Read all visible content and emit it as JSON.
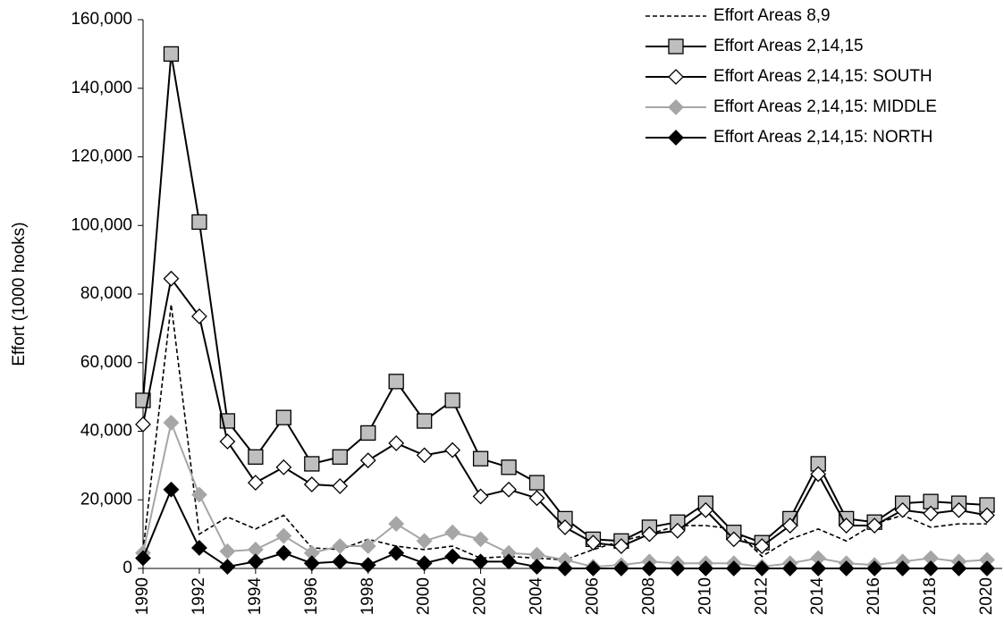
{
  "chart_data": {
    "type": "line",
    "y_label": "Effort (1000 hooks)",
    "x": [
      1990,
      1991,
      1992,
      1993,
      1994,
      1995,
      1996,
      1997,
      1998,
      1999,
      2000,
      2001,
      2002,
      2003,
      2004,
      2005,
      2006,
      2007,
      2008,
      2009,
      2010,
      2011,
      2012,
      2013,
      2014,
      2015,
      2016,
      2017,
      2018,
      2019,
      2020
    ],
    "xlim": [
      1990,
      2020.54
    ],
    "xticks": [
      1990,
      1992,
      1994,
      1996,
      1998,
      2000,
      2002,
      2004,
      2006,
      2008,
      2010,
      2012,
      2014,
      2016,
      2018,
      2020
    ],
    "ylim": [
      0,
      160000
    ],
    "yticks": [
      {
        "value": 0,
        "label": "0"
      },
      {
        "value": 20000,
        "label": "20,000"
      },
      {
        "value": 40000,
        "label": "40,000"
      },
      {
        "value": 60000,
        "label": "60,000"
      },
      {
        "value": 80000,
        "label": "80,000"
      },
      {
        "value": 100000,
        "label": "100,000"
      },
      {
        "value": 120000,
        "label": "120,000"
      },
      {
        "value": 140000,
        "label": "140,000"
      },
      {
        "value": 160000,
        "label": "160,000"
      }
    ],
    "legend": "top-right",
    "series": [
      {
        "name": "Effort Areas 8,9",
        "color": "#000000",
        "dash": true,
        "marker": "none",
        "values": [
          5000,
          77000,
          10000,
          15000,
          11500,
          15500,
          6000,
          5500,
          8500,
          6500,
          5500,
          6500,
          3000,
          3500,
          3000,
          2500,
          5500,
          8000,
          10000,
          12500,
          12500,
          11500,
          3500,
          8500,
          11500,
          8000,
          13000,
          15500,
          12000,
          13000,
          13000
        ]
      },
      {
        "name": "Effort Areas 2,14,15",
        "color": "#000000",
        "dash": false,
        "marker": "square",
        "marker_fill": "#bfbfbf",
        "values": [
          49000,
          150000,
          101000,
          43000,
          32500,
          44000,
          30500,
          32500,
          39500,
          54500,
          43000,
          49000,
          32000,
          29500,
          25000,
          14500,
          8500,
          8000,
          12000,
          13500,
          19000,
          10500,
          7500,
          14500,
          30500,
          14500,
          13500,
          19000,
          19500,
          19000,
          18500
        ]
      },
      {
        "name": "Effort Areas 2,14,15: SOUTH",
        "color": "#000000",
        "dash": false,
        "marker": "diamond",
        "marker_fill": "#ffffff",
        "values": [
          42000,
          84500,
          73500,
          37000,
          25000,
          29500,
          24500,
          24000,
          31500,
          36500,
          33000,
          34500,
          21000,
          23000,
          20500,
          12000,
          7500,
          6500,
          10000,
          11000,
          17000,
          8500,
          6500,
          12500,
          27500,
          12500,
          12500,
          17000,
          16000,
          17000,
          15500
        ]
      },
      {
        "name": "Effort Areas 2,14,15: MIDDLE",
        "color": "#a6a6a6",
        "dash": false,
        "marker": "diamond",
        "marker_fill": "#a6a6a6",
        "values": [
          4500,
          42500,
          21500,
          5000,
          5500,
          9500,
          4500,
          6500,
          6500,
          13000,
          8000,
          10500,
          8500,
          4500,
          4000,
          2500,
          500,
          1000,
          2000,
          1500,
          1500,
          1500,
          500,
          1500,
          3000,
          1500,
          1000,
          2000,
          3000,
          2000,
          2500
        ]
      },
      {
        "name": "Effort Areas 2,14,15: NORTH",
        "color": "#000000",
        "dash": false,
        "marker": "diamond",
        "marker_fill": "#000000",
        "values": [
          3000,
          23000,
          6000,
          500,
          2000,
          4500,
          1500,
          2000,
          1000,
          4500,
          1500,
          3500,
          2000,
          2000,
          500,
          0,
          0,
          0,
          0,
          0,
          0,
          0,
          0,
          0,
          0,
          0,
          0,
          0,
          0,
          0,
          0
        ]
      }
    ]
  }
}
